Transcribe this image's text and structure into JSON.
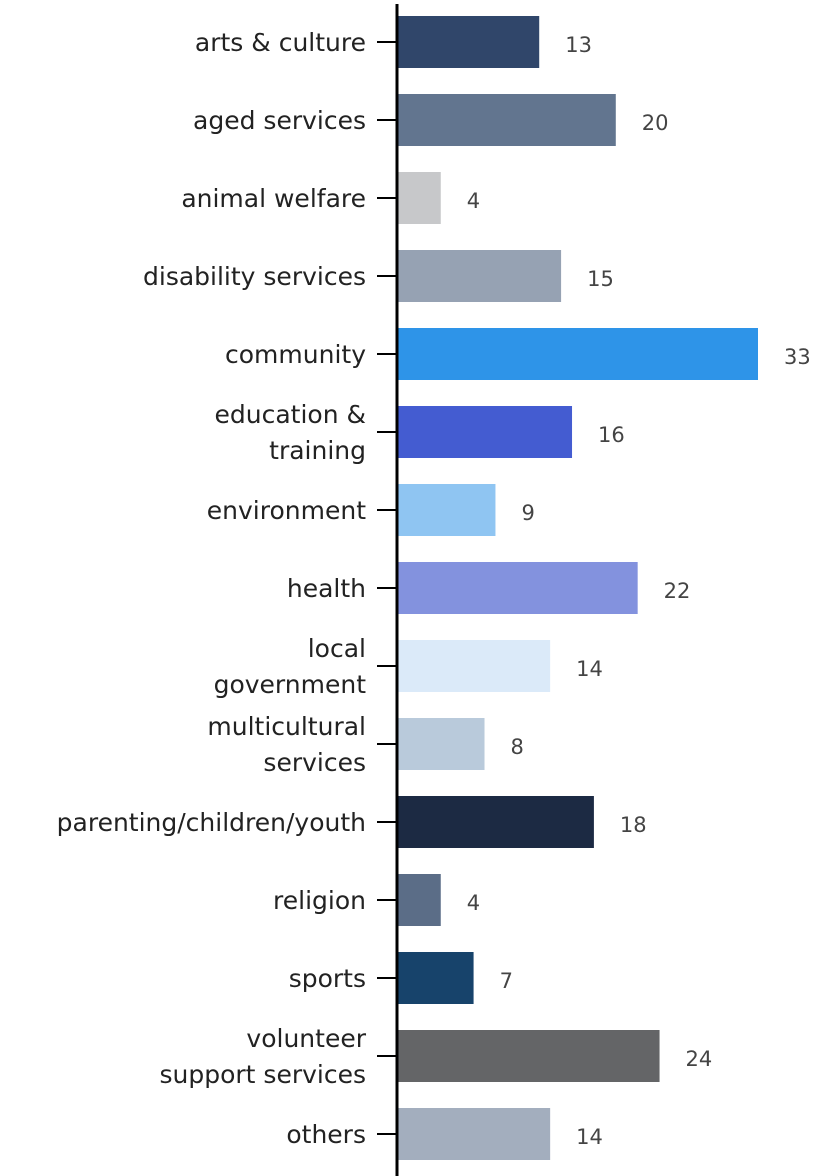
{
  "chart_data": {
    "type": "bar",
    "orientation": "horizontal",
    "categories": [
      [
        "arts & culture"
      ],
      [
        "aged services"
      ],
      [
        "animal welfare"
      ],
      [
        "disability services"
      ],
      [
        "community"
      ],
      [
        "education &",
        "training"
      ],
      [
        "environment"
      ],
      [
        "health"
      ],
      [
        "local",
        "government"
      ],
      [
        "multicultural",
        "services"
      ],
      [
        "parenting/children/youth"
      ],
      [
        "religion"
      ],
      [
        "sports"
      ],
      [
        "volunteer",
        "support services"
      ],
      [
        "others"
      ]
    ],
    "values": [
      13,
      20,
      4,
      15,
      33,
      16,
      9,
      22,
      14,
      8,
      18,
      4,
      7,
      24,
      14
    ],
    "colors": [
      "#30466a",
      "#62758f",
      "#c7c8ca",
      "#96a2b3",
      "#2e94e8",
      "#445cd1",
      "#8fc5f2",
      "#8392de",
      "#dbeaf9",
      "#b9cadb",
      "#1c2a43",
      "#5b6d87",
      "#17436b",
      "#646567",
      "#a3aebe"
    ],
    "xlim": [
      0,
      33
    ],
    "legend": "none",
    "grid": false
  }
}
